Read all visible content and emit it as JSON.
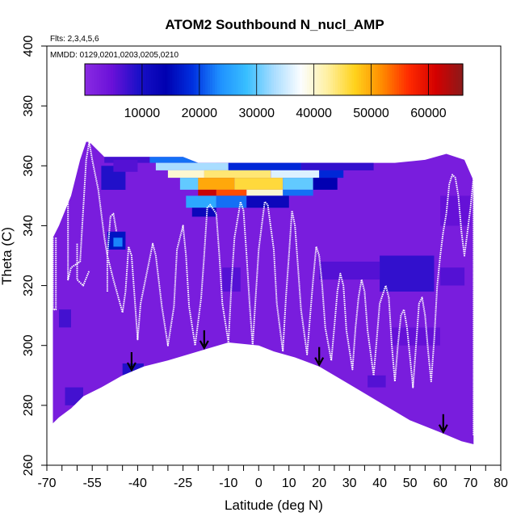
{
  "chart_data": {
    "type": "heatmap",
    "title": "ATOM2 Southbound N_nucl_AMP",
    "flights_note": "Flts: 2,3,4,5,6",
    "dates_note": "MMDD: 0129,0201,0203,0205,0210",
    "xlabel": "Latitude (deg N)",
    "ylabel": "Theta (C)",
    "xlim": [
      -70,
      80
    ],
    "ylim": [
      260,
      400
    ],
    "x_ticks": [
      -70,
      -55,
      -40,
      -25,
      -10,
      0,
      10,
      20,
      30,
      40,
      50,
      60,
      70,
      80
    ],
    "x_minor_ticks": [
      -65,
      -60,
      -50,
      -45,
      -35,
      -30,
      -20,
      -15,
      -5,
      5,
      15,
      25,
      35,
      45,
      55,
      65,
      75
    ],
    "y_ticks": [
      260,
      280,
      300,
      320,
      340,
      360,
      380,
      400
    ],
    "colorbar": {
      "range": [
        0,
        66000
      ],
      "ticks": [
        10000,
        20000,
        30000,
        40000,
        50000,
        60000
      ],
      "colors": [
        "#8a2be2",
        "#6a11d8",
        "#1a10c8",
        "#0000b0",
        "#0030e0",
        "#1e90ff",
        "#39bfff",
        "#a9ddff",
        "#fbfdff",
        "#fff0a0",
        "#ffd21c",
        "#ff8c00",
        "#ff2a00",
        "#d40000",
        "#8b1a1a"
      ]
    },
    "background_value": 2500,
    "domain_outline": [
      [
        -68,
        336
      ],
      [
        -66,
        340
      ],
      [
        -62,
        350
      ],
      [
        -59,
        362
      ],
      [
        -57,
        368
      ],
      [
        -56,
        368
      ],
      [
        -51,
        363
      ],
      [
        -46,
        363
      ],
      [
        -40,
        363
      ],
      [
        -25,
        363
      ],
      [
        -20,
        361
      ],
      [
        -10,
        361
      ],
      [
        0,
        361
      ],
      [
        10,
        361
      ],
      [
        30,
        361
      ],
      [
        45,
        361
      ],
      [
        55,
        362
      ],
      [
        62,
        364
      ],
      [
        68,
        362
      ],
      [
        71,
        355
      ],
      [
        71,
        267
      ],
      [
        67,
        268
      ],
      [
        60,
        271
      ],
      [
        50,
        275
      ],
      [
        40,
        281
      ],
      [
        30,
        287
      ],
      [
        20,
        293
      ],
      [
        12,
        296
      ],
      [
        5,
        298
      ],
      [
        0,
        300
      ],
      [
        -10,
        301
      ],
      [
        -20,
        298
      ],
      [
        -30,
        295
      ],
      [
        -38,
        293
      ],
      [
        -45,
        290
      ],
      [
        -52,
        286
      ],
      [
        -58,
        283
      ],
      [
        -62,
        279
      ],
      [
        -66,
        276
      ],
      [
        -68,
        274
      ]
    ],
    "anomalies": [
      {
        "lat": [
          -40,
          -26
        ],
        "theta": [
          364,
          365.3
        ],
        "value": 8000
      },
      {
        "lat": [
          -51,
          -36
        ],
        "theta": [
          361,
          364
        ],
        "value": 7000
      },
      {
        "lat": [
          -36,
          -14
        ],
        "theta": [
          361,
          363.5
        ],
        "value": 22000
      },
      {
        "lat": [
          -14,
          10
        ],
        "theta": [
          361,
          364
        ],
        "value": 12000
      },
      {
        "lat": [
          10,
          28
        ],
        "theta": [
          361,
          363.5
        ],
        "value": 9000
      },
      {
        "lat": [
          -34,
          -10
        ],
        "theta": [
          358.5,
          361
        ],
        "value": 33000
      },
      {
        "lat": [
          -10,
          14
        ],
        "theta": [
          358.5,
          361
        ],
        "value": 18000
      },
      {
        "lat": [
          14,
          38
        ],
        "theta": [
          358.5,
          361
        ],
        "value": 8000
      },
      {
        "lat": [
          -30,
          -18
        ],
        "theta": [
          356,
          358.5
        ],
        "value": 40000
      },
      {
        "lat": [
          -18,
          4
        ],
        "theta": [
          356,
          358.5
        ],
        "value": 44000
      },
      {
        "lat": [
          4,
          20
        ],
        "theta": [
          356,
          358.5
        ],
        "value": 36000
      },
      {
        "lat": [
          20,
          28
        ],
        "theta": [
          356,
          358.5
        ],
        "value": 18000
      },
      {
        "lat": [
          -26,
          -20
        ],
        "theta": [
          352,
          356
        ],
        "value": 30000
      },
      {
        "lat": [
          -20,
          -8
        ],
        "theta": [
          352,
          356
        ],
        "value": 50000
      },
      {
        "lat": [
          -8,
          8
        ],
        "theta": [
          352,
          356
        ],
        "value": 46000
      },
      {
        "lat": [
          8,
          18
        ],
        "theta": [
          352,
          356
        ],
        "value": 30000
      },
      {
        "lat": [
          18,
          26
        ],
        "theta": [
          352,
          356
        ],
        "value": 14000
      },
      {
        "lat": [
          -20,
          -14
        ],
        "theta": [
          350,
          352
        ],
        "value": 62000
      },
      {
        "lat": [
          -14,
          -4
        ],
        "theta": [
          350,
          352
        ],
        "value": 55000
      },
      {
        "lat": [
          -4,
          8
        ],
        "theta": [
          350,
          352
        ],
        "value": 40000
      },
      {
        "lat": [
          8,
          18
        ],
        "theta": [
          350,
          352
        ],
        "value": 22000
      },
      {
        "lat": [
          -24,
          -14
        ],
        "theta": [
          346,
          350
        ],
        "value": 26000
      },
      {
        "lat": [
          -14,
          -4
        ],
        "theta": [
          346,
          350
        ],
        "value": 22000
      },
      {
        "lat": [
          -4,
          10
        ],
        "theta": [
          346,
          350
        ],
        "value": 12000
      },
      {
        "lat": [
          -22,
          -14
        ],
        "theta": [
          343,
          346
        ],
        "value": 12000
      },
      {
        "lat": [
          -52,
          -44
        ],
        "theta": [
          352,
          360
        ],
        "value": 9000
      },
      {
        "lat": [
          -48,
          -40
        ],
        "theta": [
          358,
          362
        ],
        "value": 6000
      },
      {
        "lat": [
          -50,
          -44
        ],
        "theta": [
          332,
          338
        ],
        "value": 16000
      },
      {
        "lat": [
          -48,
          -45
        ],
        "theta": [
          333,
          336
        ],
        "value": 23000
      },
      {
        "lat": [
          -66,
          -62
        ],
        "theta": [
          306,
          312
        ],
        "value": 7000
      },
      {
        "lat": [
          -45,
          -38
        ],
        "theta": [
          288,
          294
        ],
        "value": 9000
      },
      {
        "lat": [
          -64,
          -58
        ],
        "theta": [
          280,
          286
        ],
        "value": 7000
      },
      {
        "lat": [
          -12,
          -6
        ],
        "theta": [
          318,
          326
        ],
        "value": 6000
      },
      {
        "lat": [
          20,
          40
        ],
        "theta": [
          322,
          328
        ],
        "value": 6000
      },
      {
        "lat": [
          40,
          58
        ],
        "theta": [
          318,
          330
        ],
        "value": 8000
      },
      {
        "lat": [
          60,
          68
        ],
        "theta": [
          320,
          326
        ],
        "value": 6000
      },
      {
        "lat": [
          44,
          60
        ],
        "theta": [
          300,
          306
        ],
        "value": 5000
      },
      {
        "lat": [
          36,
          42
        ],
        "theta": [
          286,
          290
        ],
        "value": 6000
      },
      {
        "lat": [
          60,
          70
        ],
        "theta": [
          340,
          350
        ],
        "value": 5000
      }
    ],
    "flight_tracks": [
      [
        [
          -68,
          336
        ],
        [
          -68,
          312
        ],
        [
          -67,
          312
        ],
        [
          -67,
          336
        ]
      ],
      [
        [
          -63,
          350
        ],
        [
          -63,
          322
        ],
        [
          -62,
          326
        ],
        [
          -59,
          328
        ],
        [
          -57,
          362
        ],
        [
          -56,
          368
        ],
        [
          -55,
          362
        ],
        [
          -53,
          352
        ],
        [
          -51,
          336
        ],
        [
          -50,
          330
        ],
        [
          -49,
          343
        ],
        [
          -48,
          344
        ],
        [
          -47,
          338
        ]
      ],
      [
        [
          -60,
          334
        ],
        [
          -60,
          322
        ],
        [
          -58,
          320
        ],
        [
          -56,
          325
        ]
      ],
      [
        [
          -50,
          318
        ],
        [
          -50,
          330
        ],
        [
          -48,
          322
        ],
        [
          -45,
          311
        ],
        [
          -44,
          318
        ],
        [
          -43,
          333
        ],
        [
          -42,
          330
        ],
        [
          -41,
          316
        ],
        [
          -40,
          302
        ],
        [
          -39,
          314
        ],
        [
          -37,
          324
        ],
        [
          -35,
          334
        ],
        [
          -34,
          330
        ],
        [
          -32,
          313
        ],
        [
          -30,
          300
        ],
        [
          -28,
          313
        ],
        [
          -27,
          332
        ],
        [
          -25,
          340
        ],
        [
          -24,
          330
        ],
        [
          -23,
          313
        ],
        [
          -21,
          300
        ],
        [
          -19,
          316
        ],
        [
          -18,
          330
        ],
        [
          -17,
          346
        ],
        [
          -16,
          347
        ],
        [
          -14,
          344
        ],
        [
          -13,
          330
        ],
        [
          -12,
          314
        ],
        [
          -10,
          301
        ],
        [
          -9,
          320
        ],
        [
          -8,
          336
        ],
        [
          -6,
          348
        ],
        [
          -5,
          345
        ],
        [
          -4,
          330
        ],
        [
          -3,
          314
        ],
        [
          -2,
          300
        ],
        [
          -1,
          316
        ],
        [
          0,
          332
        ],
        [
          2,
          348
        ],
        [
          3,
          347
        ],
        [
          5,
          332
        ],
        [
          6,
          314
        ],
        [
          8,
          298
        ],
        [
          9,
          316
        ],
        [
          10,
          330
        ],
        [
          11,
          345
        ],
        [
          12,
          340
        ],
        [
          13,
          326
        ],
        [
          14,
          312
        ],
        [
          16,
          297
        ],
        [
          17,
          310
        ],
        [
          18,
          322
        ],
        [
          19,
          333
        ],
        [
          20,
          330
        ],
        [
          21,
          320
        ],
        [
          22,
          306
        ],
        [
          24,
          295
        ],
        [
          25,
          306
        ],
        [
          26,
          318
        ],
        [
          27,
          324
        ],
        [
          28,
          320
        ],
        [
          29,
          305
        ],
        [
          31,
          292
        ],
        [
          32,
          306
        ],
        [
          33,
          316
        ],
        [
          34,
          322
        ],
        [
          35,
          318
        ],
        [
          36,
          305
        ],
        [
          38,
          290
        ],
        [
          39,
          302
        ],
        [
          40,
          314
        ],
        [
          42,
          320
        ],
        [
          43,
          316
        ],
        [
          44,
          300
        ],
        [
          45,
          288
        ],
        [
          46,
          300
        ],
        [
          47,
          310
        ],
        [
          48,
          312
        ],
        [
          49,
          306
        ],
        [
          50,
          296
        ],
        [
          51,
          286
        ],
        [
          52,
          300
        ],
        [
          53,
          314
        ],
        [
          54,
          316
        ],
        [
          55,
          310
        ],
        [
          56,
          298
        ],
        [
          57,
          288
        ],
        [
          58,
          302
        ],
        [
          59,
          320
        ],
        [
          60,
          330
        ],
        [
          61,
          338
        ],
        [
          62,
          344
        ],
        [
          63,
          354
        ],
        [
          64,
          357
        ],
        [
          65,
          356
        ],
        [
          66,
          350
        ],
        [
          67,
          338
        ],
        [
          68,
          330
        ],
        [
          69,
          338
        ],
        [
          70,
          346
        ],
        [
          71,
          356
        ],
        [
          71,
          270
        ]
      ]
    ],
    "arrows": [
      -42,
      -18,
      20,
      61
    ]
  }
}
